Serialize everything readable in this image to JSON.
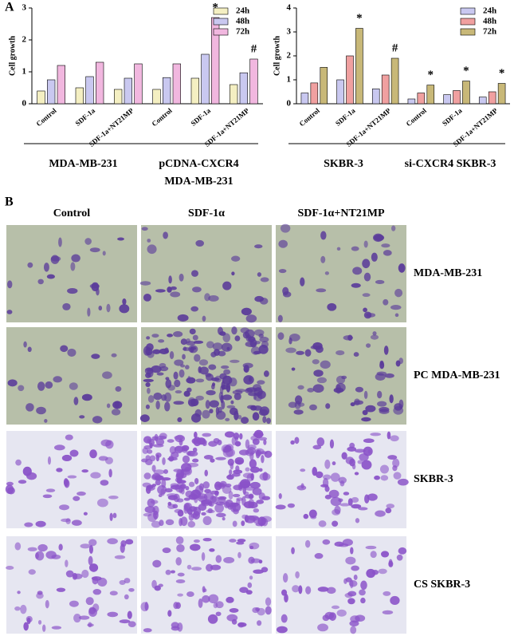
{
  "panel_labels": [
    "A",
    "B"
  ],
  "chart_data": [
    {
      "type": "bar",
      "y_label": "Cell growth",
      "categories": [
        "Control",
        "SDF-1a",
        "SDF-1a+NT21MP",
        "Control",
        "SDF-1a",
        "SDF-1a+NT21MP"
      ],
      "groups": [
        [
          "MDA-MB-231"
        ],
        [
          "pCDNA-CXCR4",
          "MDA-MB-231"
        ]
      ],
      "series": [
        {
          "name": "24h",
          "color": "#f4efc2",
          "values": [
            0.4,
            0.5,
            0.45,
            0.45,
            0.8,
            0.6
          ]
        },
        {
          "name": "48h",
          "color": "#c9c8f0",
          "values": [
            0.75,
            0.85,
            0.8,
            0.82,
            1.55,
            0.97
          ]
        },
        {
          "name": "72h",
          "color": "#f1b7df",
          "values": [
            1.2,
            1.3,
            1.25,
            1.25,
            2.7,
            1.4
          ]
        }
      ],
      "annotations": [
        {
          "text": "*",
          "series": 2,
          "category": 4
        },
        {
          "text": "#",
          "series": 2,
          "category": 5
        }
      ],
      "ylim": [
        0,
        3
      ],
      "yticks": [
        0,
        1,
        2,
        3
      ],
      "legend": "upper right"
    },
    {
      "type": "bar",
      "y_label": "Cell growth",
      "categories": [
        "Control",
        "SDF-1a",
        "SDF-1a+NT21MP",
        "Control",
        "SDF-1a",
        "SDF-1a+NT21MP"
      ],
      "groups": [
        [
          "SKBR-3"
        ],
        [
          "si-CXCR4 SKBR-3"
        ]
      ],
      "series": [
        {
          "name": "24h",
          "color": "#c9c8f0",
          "values": [
            0.45,
            1.0,
            0.62,
            0.2,
            0.38,
            0.28
          ]
        },
        {
          "name": "48h",
          "color": "#f0a0a0",
          "values": [
            0.87,
            2.0,
            1.2,
            0.45,
            0.55,
            0.5
          ]
        },
        {
          "name": "72h",
          "color": "#c8b878",
          "values": [
            1.52,
            3.15,
            1.9,
            0.78,
            0.95,
            0.85
          ]
        }
      ],
      "annotations": [
        {
          "text": "*",
          "series": 2,
          "category": 1
        },
        {
          "text": "#",
          "series": 2,
          "category": 2
        },
        {
          "text": "*",
          "series": 2,
          "category": 3
        },
        {
          "text": "*",
          "series": 2,
          "category": 4
        },
        {
          "text": "*",
          "series": 2,
          "category": 5
        }
      ],
      "ylim": [
        0,
        4
      ],
      "yticks": [
        0,
        1,
        2,
        3,
        4
      ],
      "legend": "upper right"
    }
  ],
  "images": {
    "columns": [
      "Control",
      "SDF-1α",
      "SDF-1α+NT21MP"
    ],
    "rows": [
      "MDA-MB-231",
      "PC MDA-MB-231",
      "SKBR-3",
      "CS SKBR-3"
    ]
  }
}
